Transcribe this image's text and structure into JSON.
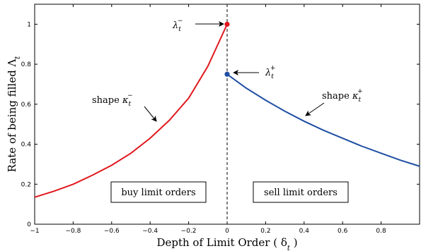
{
  "chart_data": {
    "type": "line",
    "xlabel": "Depth of Limit Order ( δ",
    "xlabel_sub": "t",
    "xlabel_close": " )",
    "ylabel": "Rate of being filled Λ",
    "ylabel_sub": "t",
    "xlim": [
      -1,
      1
    ],
    "ylim": [
      0,
      1.1
    ],
    "xticks": [
      -1,
      -0.8,
      -0.6,
      -0.4,
      -0.2,
      0,
      0.2,
      0.4,
      0.6,
      0.8
    ],
    "yticks": [
      0,
      0.2,
      0.4,
      0.6,
      0.8,
      1
    ],
    "xtick_labels": [
      "−1",
      "−0.8",
      "−0.6",
      "−0.4",
      "−0.2",
      "0",
      "0.2",
      "0.4",
      "0.6",
      "0.8"
    ],
    "ytick_labels": [
      "0",
      "0.2",
      "0.4",
      "0.6",
      "0.8",
      "1"
    ],
    "grid": false,
    "series": [
      {
        "color": "#e0181e",
        "x": [
          -1,
          -0.9,
          -0.8,
          -0.7,
          -0.6,
          -0.5,
          -0.4,
          -0.3,
          -0.2,
          -0.1,
          0
        ],
        "y": [
          0.135,
          0.165,
          0.2,
          0.245,
          0.295,
          0.355,
          0.43,
          0.52,
          0.63,
          0.79,
          1.0
        ]
      },
      {
        "color": "#1f4ea3",
        "x": [
          0,
          0.1,
          0.2,
          0.3,
          0.4,
          0.5,
          0.6,
          0.7,
          0.8,
          0.9,
          1.0
        ],
        "y": [
          0.75,
          0.68,
          0.62,
          0.565,
          0.515,
          0.47,
          0.43,
          0.39,
          0.355,
          0.32,
          0.29
        ]
      }
    ],
    "points": [
      {
        "x": 0,
        "y": 1.0,
        "color": "#e0181e"
      },
      {
        "x": 0,
        "y": 0.75,
        "color": "#1f4ea3"
      }
    ],
    "vline_x": 0,
    "annotations": {
      "lambda_minus": {
        "base": "λ",
        "sub": "t",
        "sup": "−"
      },
      "lambda_plus": {
        "base": "λ",
        "sub": "t",
        "sup": "+"
      },
      "shape_minus": {
        "prefix": "shape ",
        "base": "κ",
        "sub": "t",
        "sup": "−"
      },
      "shape_plus": {
        "prefix": "shape ",
        "base": "κ",
        "sub": "t",
        "sup": "+"
      }
    },
    "boxes": {
      "buy": "buy limit orders",
      "sell": "sell limit orders"
    }
  }
}
